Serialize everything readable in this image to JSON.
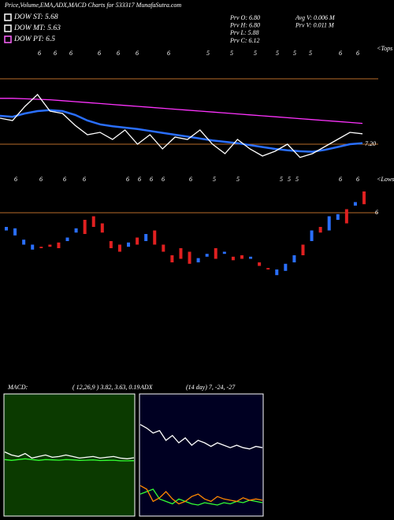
{
  "header": {
    "title": "Price,Volume,EMA,ADX,MACD Charts for 533317 MunafaSutra.com",
    "dow": [
      "DOW ST: 5.68",
      "DOW MT: 5.63",
      "DOW PT: 6.5"
    ],
    "dow_colors": [
      "#ffffff",
      "#ffffff",
      "#ff66ff"
    ],
    "prev": [
      "Prv  O: 6.80",
      "Prv  H: 6.80",
      "Prv  L: 5.88",
      "Prv  C: 6.12"
    ],
    "vol": [
      "Avg  V: 0.006  M",
      "Prv  V: 0.011  M"
    ]
  },
  "chart_data": [
    {
      "type": "line",
      "ylim": [
        6.75,
        8.75
      ],
      "reference_line": {
        "value": 7.2,
        "label": "7.20"
      },
      "marker": "<Tops",
      "digits": [
        "6",
        "6",
        "6",
        "6",
        "6",
        "6",
        "6",
        "5",
        "5",
        "5",
        "5",
        "5",
        "5",
        "6",
        "6"
      ],
      "series": [
        {
          "color": "#ff33ff",
          "values": [
            8.17,
            8.17,
            8.16,
            8.15,
            8.14,
            8.12,
            8.1,
            8.08,
            8.06,
            8.04,
            8.02,
            8.0,
            7.98,
            7.96,
            7.94,
            7.92,
            7.9,
            7.88,
            7.86,
            7.84,
            7.82,
            7.8,
            7.78,
            7.76,
            7.74,
            7.72,
            7.7,
            7.68,
            7.66,
            7.64
          ]
        },
        {
          "color": "#2a6fff",
          "values": [
            7.8,
            7.78,
            7.85,
            7.9,
            7.92,
            7.9,
            7.82,
            7.7,
            7.62,
            7.58,
            7.55,
            7.52,
            7.48,
            7.44,
            7.4,
            7.36,
            7.32,
            7.28,
            7.25,
            7.22,
            7.18,
            7.14,
            7.1,
            7.07,
            7.05,
            7.04,
            7.08,
            7.14,
            7.2,
            7.22
          ]
        },
        {
          "color": "#ffffff",
          "values": [
            7.75,
            7.7,
            8.0,
            8.25,
            7.9,
            7.85,
            7.6,
            7.4,
            7.45,
            7.3,
            7.5,
            7.2,
            7.4,
            7.1,
            7.35,
            7.3,
            7.5,
            7.2,
            7.0,
            7.3,
            7.1,
            6.95,
            7.05,
            7.2,
            6.92,
            7.0,
            7.15,
            7.3,
            7.45,
            7.42
          ]
        }
      ]
    },
    {
      "type": "candlestick",
      "ylim": [
        4.8,
        6.6
      ],
      "reference_line": {
        "value": 6,
        "label": "6"
      },
      "marker": "<Lows",
      "digits": [
        "6",
        "6",
        "6",
        "6",
        "6",
        "6",
        "6",
        "6",
        "6",
        "5",
        "5",
        "5",
        "5",
        "5",
        "6",
        "6"
      ],
      "up_color": "#2a6fff",
      "down_color": "#e02020",
      "open": [
        5.75,
        5.68,
        5.55,
        5.48,
        5.52,
        5.55,
        5.58,
        5.6,
        5.72,
        5.9,
        5.95,
        5.85,
        5.6,
        5.55,
        5.52,
        5.65,
        5.6,
        5.75,
        5.55,
        5.4,
        5.5,
        5.45,
        5.3,
        5.38,
        5.5,
        5.42,
        5.38,
        5.4,
        5.35,
        5.3,
        5.22,
        5.12,
        5.18,
        5.3,
        5.55,
        5.6,
        5.8,
        5.75,
        5.9,
        6.05,
        6.1,
        6.3
      ],
      "close": [
        5.8,
        5.78,
        5.62,
        5.55,
        5.5,
        5.52,
        5.5,
        5.65,
        5.78,
        5.7,
        5.8,
        5.72,
        5.5,
        5.45,
        5.58,
        5.55,
        5.7,
        5.55,
        5.45,
        5.3,
        5.35,
        5.28,
        5.36,
        5.42,
        5.35,
        5.45,
        5.33,
        5.35,
        5.38,
        5.25,
        5.2,
        5.2,
        5.28,
        5.4,
        5.4,
        5.75,
        5.72,
        5.95,
        5.98,
        5.85,
        6.15,
        6.12
      ]
    },
    {
      "type": "line",
      "title": "MACD:",
      "subtitle": "( 12,26,9 ) 3.82, 3.63, 0.19",
      "background": "#0b3a00",
      "ylim": [
        0,
        8
      ],
      "series": [
        {
          "color": "#ffffff",
          "values": [
            4.2,
            4.0,
            3.9,
            4.1,
            3.8,
            3.9,
            4.0,
            3.85,
            3.9,
            4.0,
            3.9,
            3.8,
            3.85,
            3.9,
            3.8,
            3.85,
            3.9,
            3.8,
            3.75,
            3.82
          ]
        },
        {
          "color": "#33ff33",
          "values": [
            3.7,
            3.65,
            3.7,
            3.75,
            3.7,
            3.65,
            3.7,
            3.68,
            3.66,
            3.7,
            3.68,
            3.65,
            3.66,
            3.68,
            3.64,
            3.65,
            3.66,
            3.62,
            3.62,
            3.63
          ]
        }
      ]
    },
    {
      "type": "line",
      "title": "ADX",
      "subtitle": "(14  day) 7, -24, -27",
      "background": "#000022",
      "ylim": [
        0,
        100
      ],
      "series": [
        {
          "color": "#ffffff",
          "values": [
            75,
            72,
            68,
            70,
            62,
            66,
            60,
            64,
            58,
            62,
            60,
            57,
            60,
            58,
            56,
            58,
            56,
            55,
            57,
            56
          ]
        },
        {
          "color": "#33ff33",
          "values": [
            18,
            20,
            22,
            14,
            12,
            10,
            14,
            12,
            10,
            9,
            11,
            10,
            9,
            11,
            10,
            12,
            11,
            13,
            12,
            11
          ]
        },
        {
          "color": "#ff8800",
          "values": [
            25,
            22,
            12,
            15,
            20,
            14,
            10,
            12,
            16,
            18,
            14,
            12,
            16,
            14,
            13,
            12,
            15,
            13,
            14,
            13
          ]
        }
      ]
    }
  ]
}
